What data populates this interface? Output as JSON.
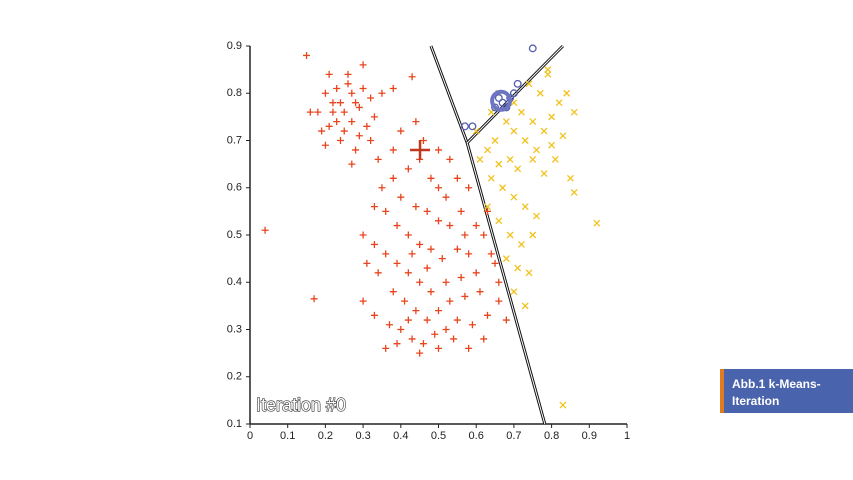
{
  "chart_data": {
    "type": "scatter",
    "annotation": "Iteration #0",
    "xlim": [
      0,
      1
    ],
    "ylim": [
      0.1,
      0.9
    ],
    "xticks": [
      0,
      0.1,
      0.2,
      0.3,
      0.4,
      0.5,
      0.6,
      0.7,
      0.8,
      0.9,
      1
    ],
    "yticks": [
      0.1,
      0.2,
      0.3,
      0.4,
      0.5,
      0.6,
      0.7,
      0.8,
      0.9
    ],
    "boundaries": [
      {
        "x": [
          0.48,
          0.576,
          0.782
        ],
        "y": [
          0.9,
          0.695,
          0.1
        ]
      },
      {
        "x": [
          0.83,
          0.576
        ],
        "y": [
          0.9,
          0.695
        ]
      }
    ],
    "series": [
      {
        "color": "#e8451e",
        "marker": "plus",
        "x": [
          0.2,
          0.22,
          0.25,
          0.27,
          0.23,
          0.19,
          0.29,
          0.31,
          0.26,
          0.21,
          0.24,
          0.28,
          0.32,
          0.3,
          0.18,
          0.23,
          0.27,
          0.25,
          0.2,
          0.33,
          0.22,
          0.29,
          0.35,
          0.16,
          0.26,
          0.3,
          0.24,
          0.21,
          0.28,
          0.32,
          0.34,
          0.27,
          0.15,
          0.04,
          0.17,
          0.43,
          0.38,
          0.35,
          0.38,
          0.42,
          0.45,
          0.48,
          0.5,
          0.52,
          0.55,
          0.58,
          0.4,
          0.44,
          0.47,
          0.5,
          0.53,
          0.56,
          0.6,
          0.62,
          0.36,
          0.39,
          0.42,
          0.45,
          0.48,
          0.51,
          0.55,
          0.58,
          0.64,
          0.3,
          0.33,
          0.36,
          0.39,
          0.42,
          0.45,
          0.48,
          0.52,
          0.56,
          0.6,
          0.65,
          0.31,
          0.34,
          0.38,
          0.41,
          0.44,
          0.47,
          0.5,
          0.53,
          0.57,
          0.61,
          0.66,
          0.3,
          0.33,
          0.37,
          0.4,
          0.43,
          0.46,
          0.49,
          0.52,
          0.55,
          0.59,
          0.63,
          0.68,
          0.39,
          0.45,
          0.5,
          0.58,
          0.62,
          0.36,
          0.42,
          0.54,
          0.47,
          0.43,
          0.38,
          0.46,
          0.5,
          0.53,
          0.4,
          0.44,
          0.33,
          0.57,
          0.63,
          0.66
        ],
        "y": [
          0.8,
          0.78,
          0.76,
          0.8,
          0.74,
          0.72,
          0.77,
          0.73,
          0.82,
          0.84,
          0.7,
          0.68,
          0.79,
          0.86,
          0.76,
          0.81,
          0.74,
          0.72,
          0.69,
          0.75,
          0.76,
          0.71,
          0.8,
          0.76,
          0.84,
          0.81,
          0.78,
          0.73,
          0.78,
          0.7,
          0.66,
          0.65,
          0.88,
          0.51,
          0.365,
          0.835,
          0.81,
          0.6,
          0.62,
          0.64,
          0.66,
          0.62,
          0.6,
          0.58,
          0.62,
          0.6,
          0.58,
          0.56,
          0.55,
          0.53,
          0.52,
          0.55,
          0.52,
          0.5,
          0.55,
          0.52,
          0.5,
          0.48,
          0.47,
          0.45,
          0.47,
          0.46,
          0.46,
          0.5,
          0.48,
          0.46,
          0.44,
          0.42,
          0.4,
          0.38,
          0.4,
          0.41,
          0.42,
          0.44,
          0.44,
          0.42,
          0.38,
          0.36,
          0.34,
          0.32,
          0.34,
          0.36,
          0.37,
          0.38,
          0.36,
          0.36,
          0.33,
          0.31,
          0.3,
          0.28,
          0.27,
          0.29,
          0.3,
          0.32,
          0.31,
          0.33,
          0.32,
          0.27,
          0.25,
          0.26,
          0.26,
          0.28,
          0.26,
          0.32,
          0.28,
          0.43,
          0.46,
          0.68,
          0.7,
          0.68,
          0.66,
          0.72,
          0.74,
          0.56,
          0.5,
          0.55,
          0.4
        ]
      },
      {
        "color": "#f2c21b",
        "marker": "x",
        "x": [
          0.66,
          0.7,
          0.72,
          0.75,
          0.78,
          0.8,
          0.82,
          0.77,
          0.74,
          0.79,
          0.84,
          0.86,
          0.73,
          0.76,
          0.8,
          0.83,
          0.7,
          0.68,
          0.65,
          0.63,
          0.66,
          0.69,
          0.71,
          0.75,
          0.78,
          0.81,
          0.85,
          0.86,
          0.61,
          0.64,
          0.67,
          0.7,
          0.73,
          0.76,
          0.63,
          0.66,
          0.69,
          0.72,
          0.75,
          0.68,
          0.71,
          0.74,
          0.7,
          0.73,
          0.92,
          0.83,
          0.79,
          0.6,
          0.64
        ],
        "y": [
          0.8,
          0.78,
          0.76,
          0.74,
          0.72,
          0.75,
          0.78,
          0.8,
          0.82,
          0.84,
          0.8,
          0.76,
          0.7,
          0.68,
          0.69,
          0.71,
          0.72,
          0.74,
          0.7,
          0.68,
          0.65,
          0.66,
          0.64,
          0.66,
          0.63,
          0.66,
          0.62,
          0.59,
          0.66,
          0.62,
          0.6,
          0.58,
          0.56,
          0.54,
          0.56,
          0.53,
          0.5,
          0.48,
          0.5,
          0.45,
          0.43,
          0.42,
          0.38,
          0.35,
          0.525,
          0.14,
          0.85,
          0.72,
          0.76
        ]
      },
      {
        "color": "#5560b0",
        "marker": "circle",
        "x": [
          0.75,
          0.71,
          0.7,
          0.69,
          0.66,
          0.65,
          0.68,
          0.57,
          0.59,
          0.67
        ],
        "y": [
          0.895,
          0.82,
          0.8,
          0.79,
          0.79,
          0.77,
          0.77,
          0.73,
          0.73,
          0.78
        ]
      },
      {
        "color": "#c0391a",
        "marker": "big-plus",
        "x": [
          0.451
        ],
        "y": [
          0.68
        ]
      },
      {
        "color": "#6c75c4",
        "marker": "big-circle",
        "x": [
          0.666
        ],
        "y": [
          0.784
        ]
      }
    ]
  },
  "caption": "Abb.1 k-Means-Iteration"
}
